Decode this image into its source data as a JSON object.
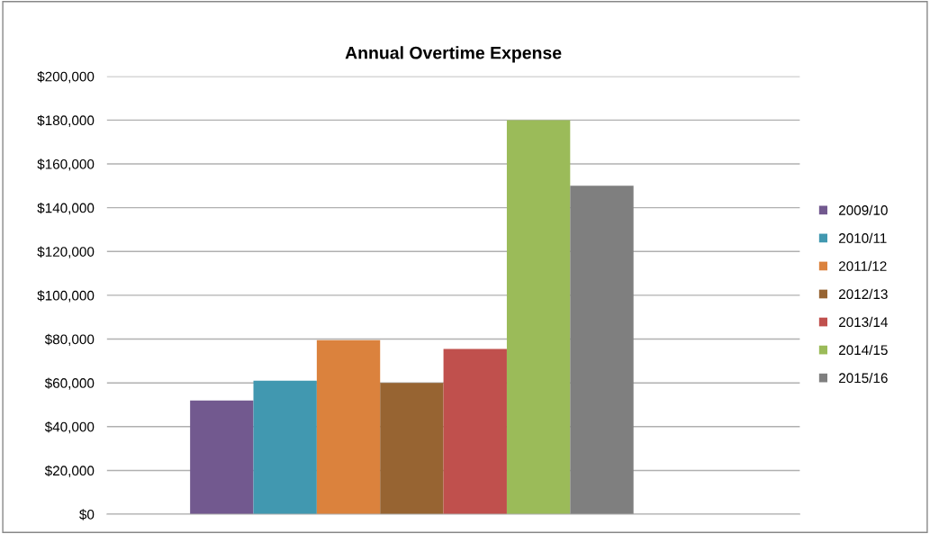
{
  "chart_data": {
    "type": "bar",
    "title": "Annual Overtime Expense",
    "categories": [
      null
    ],
    "series": [
      {
        "name": "2009/10",
        "color": "#72598f",
        "values": [
          52000
        ]
      },
      {
        "name": "2010/11",
        "color": "#4198b0",
        "values": [
          61000
        ]
      },
      {
        "name": "2011/12",
        "color": "#db823d",
        "values": [
          79500
        ]
      },
      {
        "name": "2012/13",
        "color": "#976432",
        "values": [
          60000
        ]
      },
      {
        "name": "2013/14",
        "color": "#c0504d",
        "values": [
          75500
        ]
      },
      {
        "name": "2014/15",
        "color": "#9bbb59",
        "values": [
          180000
        ]
      },
      {
        "name": "2015/16",
        "color": "#7f7f7f",
        "values": [
          150000
        ]
      }
    ],
    "ylim": [
      0,
      200000
    ],
    "yticks": [
      {
        "value": 0,
        "label": "$0"
      },
      {
        "value": 20000,
        "label": "$20,000"
      },
      {
        "value": 40000,
        "label": "$40,000"
      },
      {
        "value": 60000,
        "label": "$60,000"
      },
      {
        "value": 80000,
        "label": "$80,000"
      },
      {
        "value": 100000,
        "label": "$100,000"
      },
      {
        "value": 120000,
        "label": "$120,000"
      },
      {
        "value": 140000,
        "label": "$140,000"
      },
      {
        "value": 160000,
        "label": "$160,000"
      },
      {
        "value": 180000,
        "label": "$180,000"
      },
      {
        "value": 200000,
        "label": "$200,000"
      }
    ],
    "grid": "y",
    "legend": "right"
  }
}
